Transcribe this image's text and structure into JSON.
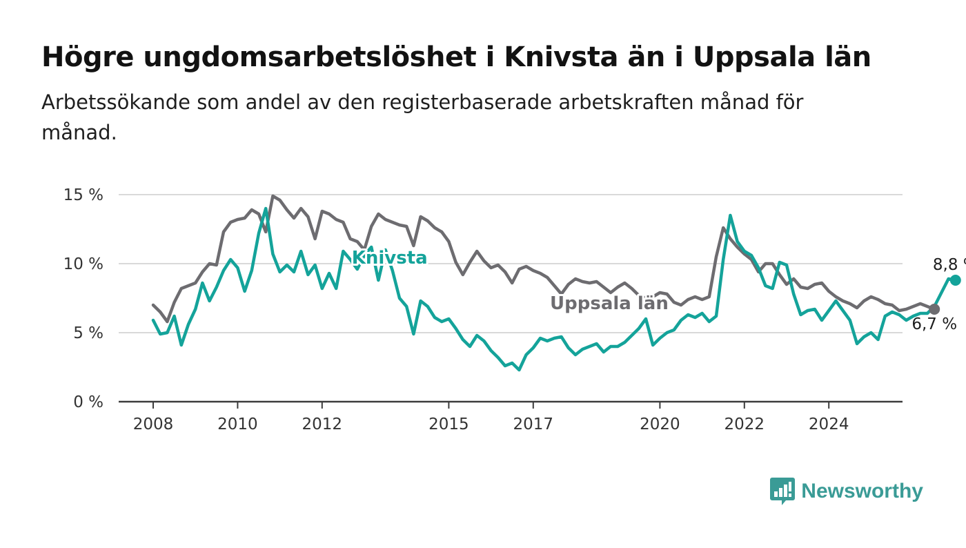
{
  "title": "Högre ungdomsarbetslöshet i Knivsta än i Uppsala län",
  "subtitle": "Arbetssökande som andel av den registerbaserade arbetskraften månad för månad.",
  "brand": {
    "name": "Newsworthy",
    "icon": "newsworthy-logo-icon",
    "color": "#3a9b96"
  },
  "chart_data": {
    "type": "line",
    "xlabel": "",
    "ylabel": "",
    "ylim": [
      0,
      15
    ],
    "yticks": [
      0,
      5,
      10,
      15
    ],
    "ytick_labels": [
      "0 %",
      "5 %",
      "10 %",
      "15 %"
    ],
    "xlim": [
      2008.0,
      2025.75
    ],
    "xticks": [
      2008,
      2010,
      2012,
      2015,
      2017,
      2020,
      2022,
      2024
    ],
    "xtick_labels": [
      "2008",
      "2010",
      "2012",
      "2015",
      "2017",
      "2020",
      "2022",
      "2024"
    ],
    "grid": true,
    "series": [
      {
        "name": "Uppsala län",
        "color": "#6d6c70",
        "end_label": "6,7 %",
        "start": 2008.0,
        "step_months": 2,
        "values": [
          7.0,
          6.5,
          5.8,
          7.2,
          8.2,
          8.4,
          8.6,
          9.4,
          10.0,
          9.9,
          12.3,
          13.0,
          13.2,
          13.3,
          13.9,
          13.6,
          12.3,
          14.9,
          14.6,
          13.9,
          13.3,
          14.0,
          13.4,
          11.8,
          13.8,
          13.6,
          13.2,
          13.0,
          11.8,
          11.6,
          11.0,
          12.7,
          13.6,
          13.2,
          13.0,
          12.8,
          12.7,
          11.3,
          13.4,
          13.1,
          12.6,
          12.3,
          11.6,
          10.1,
          9.2,
          10.1,
          10.9,
          10.2,
          9.7,
          9.9,
          9.4,
          8.6,
          9.6,
          9.8,
          9.5,
          9.3,
          9.0,
          8.4,
          7.8,
          8.5,
          8.9,
          8.7,
          8.6,
          8.7,
          8.3,
          7.9,
          8.3,
          8.6,
          8.2,
          7.7,
          7.5,
          7.6,
          7.9,
          7.8,
          7.2,
          7.0,
          7.4,
          7.6,
          7.4,
          7.6,
          10.5,
          12.6,
          11.8,
          11.2,
          10.7,
          10.3,
          9.4,
          10.0,
          10.0,
          9.2,
          8.5,
          8.9,
          8.3,
          8.2,
          8.5,
          8.6,
          8.0,
          7.6,
          7.3,
          7.1,
          6.8,
          7.3,
          7.6,
          7.4,
          7.1,
          7.0,
          6.6,
          6.7,
          6.9,
          7.1,
          6.9,
          6.7
        ]
      },
      {
        "name": "Knivsta",
        "color": "#14a39a",
        "end_label": "8,8 %",
        "start": 2008.0,
        "step_months": 2,
        "values": [
          5.9,
          4.9,
          5.0,
          6.2,
          4.1,
          5.6,
          6.7,
          8.6,
          7.3,
          8.3,
          9.5,
          10.3,
          9.7,
          8.0,
          9.5,
          12.2,
          14.0,
          10.7,
          9.4,
          9.9,
          9.4,
          10.9,
          9.2,
          9.9,
          8.2,
          9.3,
          8.2,
          10.9,
          10.3,
          9.6,
          10.6,
          11.2,
          8.8,
          11.0,
          9.5,
          7.5,
          6.9,
          4.9,
          7.3,
          6.9,
          6.1,
          5.8,
          6.0,
          5.3,
          4.5,
          4.0,
          4.8,
          4.4,
          3.7,
          3.2,
          2.6,
          2.8,
          2.3,
          3.4,
          3.9,
          4.6,
          4.4,
          4.6,
          4.7,
          3.9,
          3.4,
          3.8,
          4.0,
          4.2,
          3.6,
          4.0,
          4.0,
          4.3,
          4.8,
          5.3,
          6.0,
          4.1,
          4.6,
          5.0,
          5.2,
          5.9,
          6.3,
          6.1,
          6.4,
          5.8,
          6.2,
          10.3,
          13.5,
          11.6,
          10.9,
          10.6,
          9.7,
          8.4,
          8.2,
          10.1,
          9.9,
          7.8,
          6.3,
          6.6,
          6.7,
          5.9,
          6.6,
          7.3,
          6.6,
          5.9,
          4.2,
          4.7,
          5.0,
          4.5,
          6.2,
          6.5,
          6.3,
          5.9,
          6.2,
          6.4,
          6.4,
          6.9,
          7.9,
          8.9,
          8.8
        ]
      }
    ],
    "annotations": [
      {
        "series": "Knivsta",
        "text": "Knivsta",
        "x": 2013.6,
        "y": 10.0
      },
      {
        "series": "Uppsala län",
        "text": "Uppsala län",
        "x": 2018.8,
        "y": 6.7
      }
    ]
  }
}
